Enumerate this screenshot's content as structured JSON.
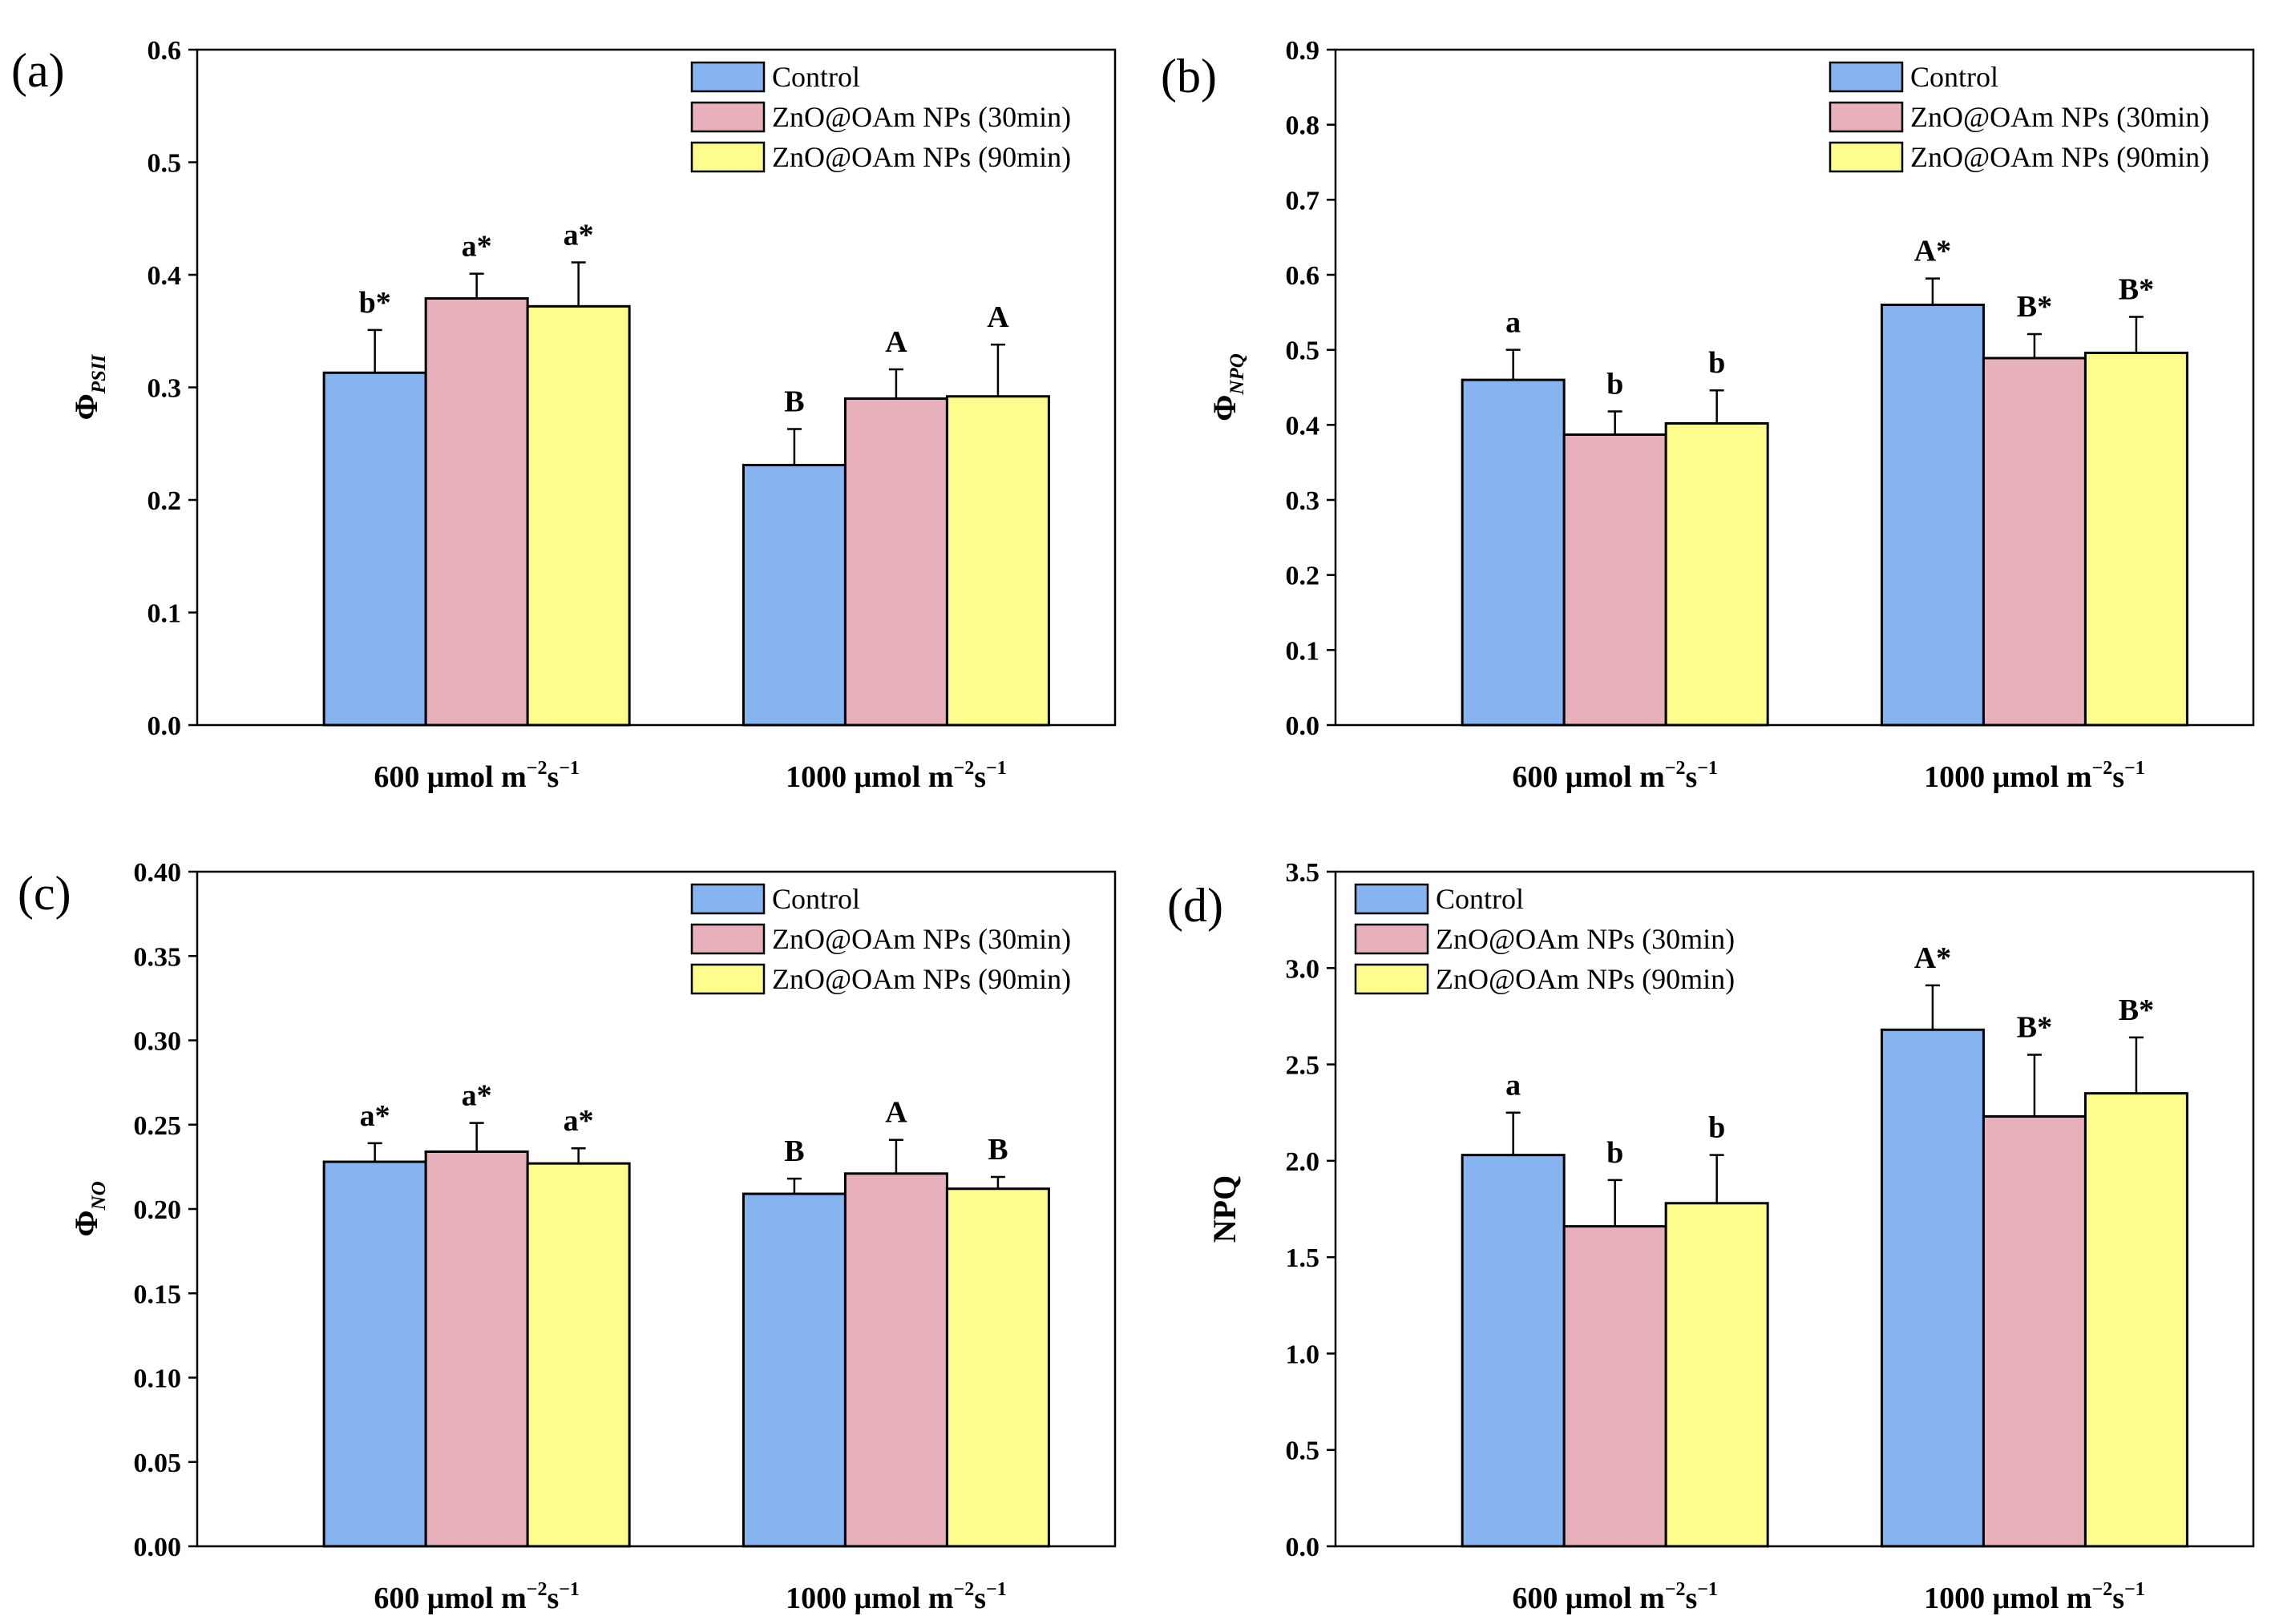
{
  "legend": {
    "entries": [
      {
        "label": "Control",
        "color": "#86b4f0"
      },
      {
        "label": "ZnO@OAm NPs (30min)",
        "color": "#e8b0ba"
      },
      {
        "label": "ZnO@OAm NPs (90min)",
        "color": "#fdfd8e"
      }
    ]
  },
  "chart_data": [
    {
      "type": "bar",
      "panel_label": "(a)",
      "ylabel": "Φ",
      "ylabel_sub": "PSII",
      "categories": [
        {
          "main": "600 μmol m",
          "sup1": "−2",
          "mid": "s",
          "sup2": "−1"
        },
        {
          "main": "1000 μmol m",
          "sup1": "−2",
          "mid": "s",
          "sup2": "−1"
        }
      ],
      "ylim": [
        0,
        0.6
      ],
      "yticks": [
        "0.0",
        "0.1",
        "0.2",
        "0.3",
        "0.4",
        "0.5",
        "0.6"
      ],
      "legend_position": "top-right",
      "series": [
        {
          "name": "Control",
          "values": [
            0.313,
            0.231
          ],
          "errors": [
            0.038,
            0.032
          ],
          "labels": [
            "b*",
            "B"
          ]
        },
        {
          "name": "ZnO@OAm NPs (30min)",
          "values": [
            0.379,
            0.29
          ],
          "errors": [
            0.022,
            0.026
          ],
          "labels": [
            "a*",
            "A"
          ]
        },
        {
          "name": "ZnO@OAm NPs (90min)",
          "values": [
            0.372,
            0.292
          ],
          "errors": [
            0.039,
            0.046
          ],
          "labels": [
            "a*",
            "A"
          ]
        }
      ]
    },
    {
      "type": "bar",
      "panel_label": "(b)",
      "ylabel": "Φ",
      "ylabel_sub": "NPQ",
      "categories": [
        {
          "main": "600 μmol m",
          "sup1": "−2",
          "mid": "s",
          "sup2": "−1"
        },
        {
          "main": "1000 μmol m",
          "sup1": "−2",
          "mid": "s",
          "sup2": "−1"
        }
      ],
      "ylim": [
        0,
        0.9
      ],
      "yticks": [
        "0.0",
        "0.1",
        "0.2",
        "0.3",
        "0.4",
        "0.5",
        "0.6",
        "0.7",
        "0.8",
        "0.9"
      ],
      "legend_position": "top-right",
      "series": [
        {
          "name": "Control",
          "values": [
            0.46,
            0.56
          ],
          "errors": [
            0.04,
            0.035
          ],
          "labels": [
            "a",
            "A*"
          ]
        },
        {
          "name": "ZnO@OAm NPs (30min)",
          "values": [
            0.387,
            0.489
          ],
          "errors": [
            0.031,
            0.032
          ],
          "labels": [
            "b",
            "B*"
          ]
        },
        {
          "name": "ZnO@OAm NPs (90min)",
          "values": [
            0.402,
            0.496
          ],
          "errors": [
            0.044,
            0.048
          ],
          "labels": [
            "b",
            "B*"
          ]
        }
      ]
    },
    {
      "type": "bar",
      "panel_label": "(c)",
      "ylabel": "Φ",
      "ylabel_sub": "NO",
      "categories": [
        {
          "main": "600 μmol m",
          "sup1": "−2",
          "mid": "s",
          "sup2": "−1"
        },
        {
          "main": "1000 μmol m",
          "sup1": "−2",
          "mid": "s",
          "sup2": "−1"
        }
      ],
      "ylim": [
        0,
        0.4
      ],
      "yticks": [
        "0.00",
        "0.05",
        "0.10",
        "0.15",
        "0.20",
        "0.25",
        "0.30",
        "0.35",
        "0.40"
      ],
      "legend_position": "top-right",
      "series": [
        {
          "name": "Control",
          "values": [
            0.228,
            0.209
          ],
          "errors": [
            0.011,
            0.009
          ],
          "labels": [
            "a*",
            "B"
          ]
        },
        {
          "name": "ZnO@OAm NPs (30min)",
          "values": [
            0.234,
            0.221
          ],
          "errors": [
            0.017,
            0.02
          ],
          "labels": [
            "a*",
            "A"
          ]
        },
        {
          "name": "ZnO@OAm NPs (90min)",
          "values": [
            0.227,
            0.212
          ],
          "errors": [
            0.009,
            0.007
          ],
          "labels": [
            "a*",
            "B"
          ]
        }
      ]
    },
    {
      "type": "bar",
      "panel_label": "(d)",
      "ylabel": "NPQ",
      "ylabel_sub": "",
      "categories": [
        {
          "main": "600 μmol m",
          "sup1": "−2",
          "mid": "s",
          "sup2": "−1"
        },
        {
          "main": "1000 μmol m",
          "sup1": "−2",
          "mid": "s",
          "sup2": "−1"
        }
      ],
      "ylim": [
        0,
        3.5
      ],
      "yticks": [
        "0.0",
        "0.5",
        "1.0",
        "1.5",
        "2.0",
        "2.5",
        "3.0",
        "3.5"
      ],
      "legend_position": "top-left",
      "series": [
        {
          "name": "Control",
          "values": [
            2.03,
            2.68
          ],
          "errors": [
            0.22,
            0.23
          ],
          "labels": [
            "a",
            "A*"
          ]
        },
        {
          "name": "ZnO@OAm NPs (30min)",
          "values": [
            1.66,
            2.23
          ],
          "errors": [
            0.24,
            0.32
          ],
          "labels": [
            "b",
            "B*"
          ]
        },
        {
          "name": "ZnO@OAm NPs (90min)",
          "values": [
            1.78,
            2.35
          ],
          "errors": [
            0.25,
            0.29
          ],
          "labels": [
            "b",
            "B*"
          ]
        }
      ]
    }
  ]
}
